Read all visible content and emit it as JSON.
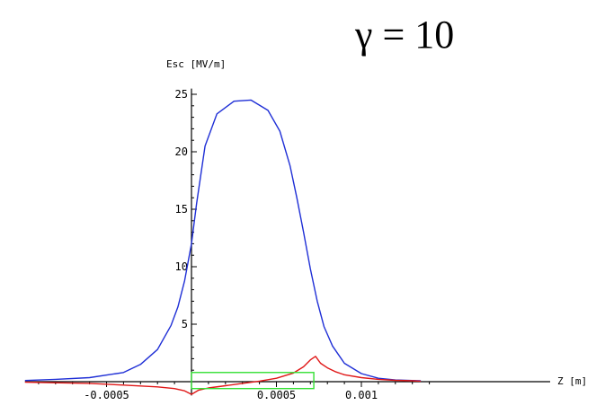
{
  "chart_data": {
    "type": "line",
    "title": "γ = 10",
    "xlabel": "Z [m]",
    "ylabel": "Esc [MV/m]",
    "xlim": [
      -0.00098,
      0.00172
    ],
    "ylim": [
      -1.2,
      25.5
    ],
    "grid": false,
    "legend": "none",
    "x_ticks": [
      {
        "value": -0.0005,
        "label": "-0.0005"
      },
      {
        "value": 0.0005,
        "label": "0.0005"
      },
      {
        "value": 0.001,
        "label": "0.001"
      }
    ],
    "y_ticks": [
      {
        "value": 5,
        "label": "5"
      },
      {
        "value": 10,
        "label": "10"
      },
      {
        "value": 15,
        "label": "15"
      },
      {
        "value": 20,
        "label": "20"
      },
      {
        "value": 25,
        "label": "25"
      }
    ],
    "series": [
      {
        "color": "#1f2fd6",
        "x": [
          -0.00098,
          -0.0008,
          -0.0006,
          -0.0004,
          -0.0003,
          -0.0002,
          -0.00012,
          -8e-05,
          -4e-05,
          0.0,
          3e-05,
          8e-05,
          0.00015,
          0.00025,
          0.00035,
          0.00045,
          0.00052,
          0.00058,
          0.00062,
          0.00066,
          0.0007,
          0.00074,
          0.00078,
          0.00083,
          0.0009,
          0.001,
          0.0011,
          0.0012,
          0.0013,
          0.00135
        ],
        "y": [
          0.1,
          0.2,
          0.35,
          0.8,
          1.5,
          2.8,
          4.9,
          6.5,
          8.8,
          12.0,
          15.5,
          20.5,
          23.3,
          24.4,
          24.5,
          23.6,
          21.8,
          18.8,
          16.0,
          13.0,
          9.8,
          7.0,
          4.8,
          3.1,
          1.6,
          0.7,
          0.3,
          0.15,
          0.1,
          0.08
        ]
      },
      {
        "color": "#e01818",
        "x": [
          -0.00098,
          -0.0006,
          -0.0004,
          -0.0002,
          -0.0001,
          -4e-05,
          0.0,
          4e-05,
          0.0001,
          0.0002,
          0.0003,
          0.0004,
          0.0005,
          0.0006,
          0.00066,
          0.0007,
          0.00073,
          0.00076,
          0.0008,
          0.00085,
          0.0009,
          0.001,
          0.0011,
          0.0012,
          0.0013,
          0.00135
        ],
        "y": [
          -0.05,
          -0.15,
          -0.3,
          -0.45,
          -0.6,
          -0.8,
          -1.1,
          -0.75,
          -0.55,
          -0.35,
          -0.15,
          0.05,
          0.3,
          0.75,
          1.3,
          1.9,
          2.2,
          1.6,
          1.2,
          0.85,
          0.6,
          0.35,
          0.2,
          0.12,
          0.08,
          0.05
        ]
      },
      {
        "color": "#35e035",
        "shape": "rectangle",
        "x": [
          0.0,
          0.00072
        ],
        "y": [
          -0.6,
          0.8
        ]
      }
    ]
  }
}
